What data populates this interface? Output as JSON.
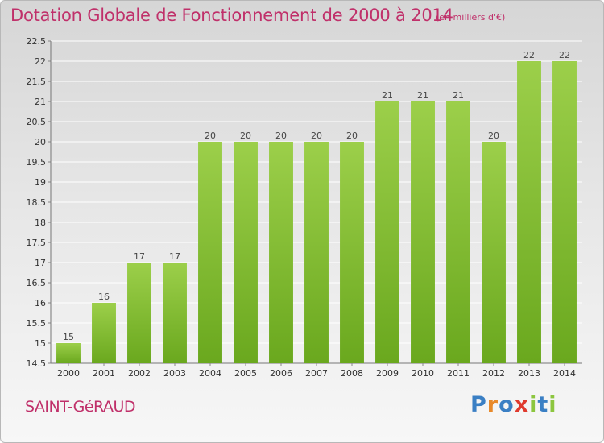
{
  "chart_data": {
    "type": "bar",
    "title": "Dotation Globale de Fonctionnement de 2000 à 2014",
    "subtitle": "(en milliers d'€)",
    "categories": [
      "2000",
      "2001",
      "2002",
      "2003",
      "2004",
      "2005",
      "2006",
      "2007",
      "2008",
      "2009",
      "2010",
      "2011",
      "2012",
      "2013",
      "2014"
    ],
    "values": [
      15,
      16,
      17,
      17,
      20,
      20,
      20,
      20,
      20,
      21,
      21,
      21,
      20,
      22,
      22
    ],
    "value_labels": [
      "15",
      "16",
      "17",
      "17",
      "20",
      "20",
      "20",
      "20",
      "20",
      "21",
      "21",
      "21",
      "20",
      "22",
      "22"
    ],
    "ylim": [
      14.5,
      22.5
    ],
    "yticks": [
      14.5,
      15,
      15.5,
      16,
      16.5,
      17,
      17.5,
      18,
      18.5,
      19,
      19.5,
      20,
      20.5,
      21,
      21.5,
      22,
      22.5
    ],
    "grid": true,
    "bar_color_top": "#9ccf4a",
    "bar_color_bottom": "#6aa81e",
    "grid_color": "#ffffff"
  },
  "footer": {
    "commune": "SAINT-GéRAUD",
    "logo_letters": [
      {
        "char": "P",
        "color": "#3a7fc4"
      },
      {
        "char": "r",
        "color": "#e8892a"
      },
      {
        "char": "o",
        "color": "#3a7fc4"
      },
      {
        "char": "x",
        "color": "#e03a2e"
      },
      {
        "char": "i",
        "color": "#8cc63f"
      },
      {
        "char": "t",
        "color": "#3a7fc4"
      },
      {
        "char": "i",
        "color": "#8cc63f"
      }
    ]
  },
  "text_color": "#c0306a"
}
